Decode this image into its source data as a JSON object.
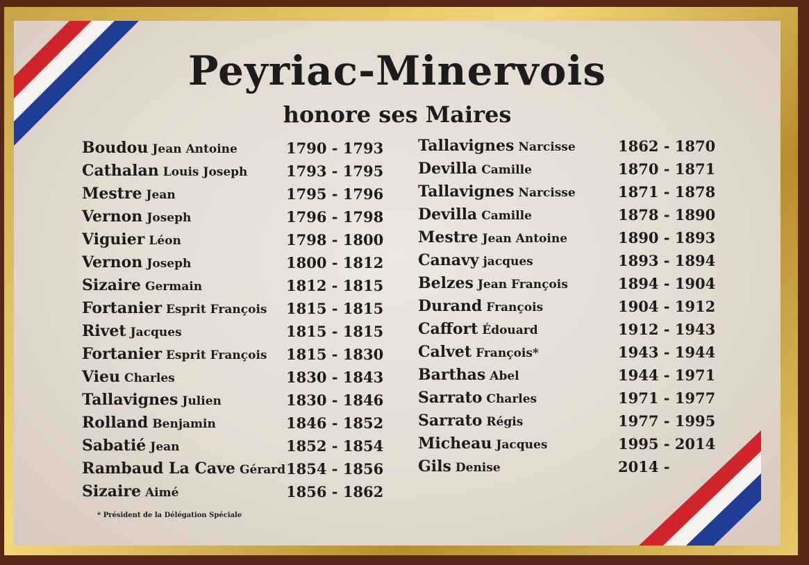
{
  "title": "Peyriac-Minervois",
  "subtitle": "honore ses Maires",
  "columns": [
    [
      {
        "surname": "Boudou",
        "given": "Jean Antoine",
        "years": "1790 - 1793"
      },
      {
        "surname": "Cathalan",
        "given": "Louis Joseph",
        "years": "1793 - 1795"
      },
      {
        "surname": "Mestre",
        "given": "Jean",
        "years": "1795 - 1796"
      },
      {
        "surname": "Vernon",
        "given": "Joseph",
        "years": "1796 - 1798"
      },
      {
        "surname": "Viguier",
        "given": "Léon",
        "years": "1798 - 1800"
      },
      {
        "surname": "Vernon",
        "given": "Joseph",
        "years": "1800 - 1812"
      },
      {
        "surname": "Sizaire",
        "given": "Germain",
        "years": "1812 - 1815"
      },
      {
        "surname": "Fortanier",
        "given": "Esprit François",
        "years": "1815 - 1815"
      },
      {
        "surname": "Rivet",
        "given": "Jacques",
        "years": "1815 - 1815"
      },
      {
        "surname": "Fortanier",
        "given": "Esprit François",
        "years": "1815 - 1830"
      },
      {
        "surname": "Vieu",
        "given": "Charles",
        "years": "1830 - 1843"
      },
      {
        "surname": "Tallavignes",
        "given": "Julien",
        "years": "1830 - 1846"
      },
      {
        "surname": "Rolland",
        "given": "Benjamin",
        "years": "1846 - 1852"
      },
      {
        "surname": "Sabatié",
        "given": "Jean",
        "years": "1852 - 1854"
      },
      {
        "surname": "Rambaud La Cave",
        "given": "Gérard",
        "years": "1854 - 1856"
      },
      {
        "surname": "Sizaire",
        "given": "Aimé",
        "years": "1856 - 1862"
      }
    ],
    [
      {
        "surname": "Tallavignes",
        "given": "Narcisse",
        "years": "1862 - 1870"
      },
      {
        "surname": "Devilla",
        "given": "Camille",
        "years": "1870 - 1871"
      },
      {
        "surname": "Tallavignes",
        "given": "Narcisse",
        "years": "1871 - 1878"
      },
      {
        "surname": "Devilla",
        "given": "Camille",
        "years": "1878 - 1890"
      },
      {
        "surname": "Mestre",
        "given": "Jean Antoine",
        "years": "1890 - 1893"
      },
      {
        "surname": "Canavy",
        "given": "jacques",
        "years": "1893 - 1894"
      },
      {
        "surname": "Belzes",
        "given": "Jean François",
        "years": "1894 - 1904"
      },
      {
        "surname": "Durand",
        "given": "François",
        "years": "1904 - 1912"
      },
      {
        "surname": "Caffort",
        "given": "Édouard",
        "years": "1912 - 1943"
      },
      {
        "surname": "Calvet",
        "given": "François*",
        "years": "1943 - 1944"
      },
      {
        "surname": "Barthas",
        "given": "Abel",
        "years": "1944 - 1971"
      },
      {
        "surname": "Sarrato",
        "given": "Charles",
        "years": "1971 - 1977"
      },
      {
        "surname": "Sarrato",
        "given": "Régis",
        "years": "1977 - 1995"
      },
      {
        "surname": "Micheau",
        "given": "Jacques",
        "years": "1995 - 2014"
      },
      {
        "surname": "Gils",
        "given": "Denise",
        "years": "2014 -"
      }
    ]
  ],
  "footnote": "* Président de la Délégation Spéciale"
}
